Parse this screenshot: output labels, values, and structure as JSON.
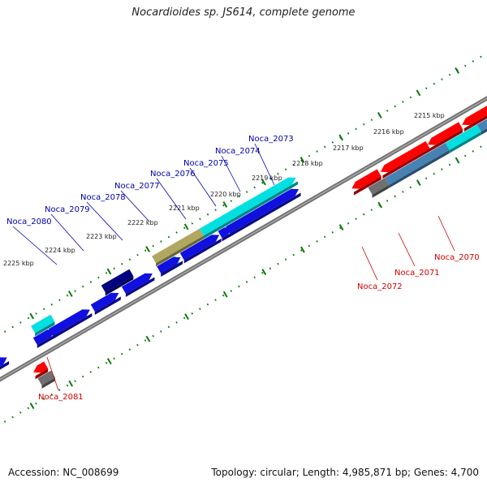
{
  "title": "Nocardioides sp. JS614, complete genome",
  "accession": "Accession: NC_008699",
  "summary": "Topology: circular; Length: 4,985,871 bp; Genes: 4,700",
  "colors": {
    "forward": "#1010e0",
    "reverse": "#ff0000",
    "cyan": "#00e0e0",
    "navy": "#000080",
    "olive": "#b0a860",
    "gray": "#707070",
    "steel": "#4682b4",
    "axis": "#707070",
    "ruler": "#0a7a0a",
    "forward_label": "#0000b0",
    "reverse_label": "#d00000"
  },
  "ruler_ticks": [
    "2215 kbp",
    "2216 kbp",
    "2217 kbp",
    "2218 kbp",
    "2219 kbp",
    "2220 kbp",
    "2221 kbp",
    "2222 kbp",
    "2223 kbp",
    "2224 kbp",
    "2225 kbp"
  ],
  "forward_genes": [
    "Noca_2073",
    "Noca_2074",
    "Noca_2075",
    "Noca_2076",
    "Noca_2077",
    "Noca_2078",
    "Noca_2079",
    "Noca_2080"
  ],
  "reverse_genes": [
    "Noca_2070",
    "Noca_2071",
    "Noca_2072",
    "Noca_2081"
  ]
}
